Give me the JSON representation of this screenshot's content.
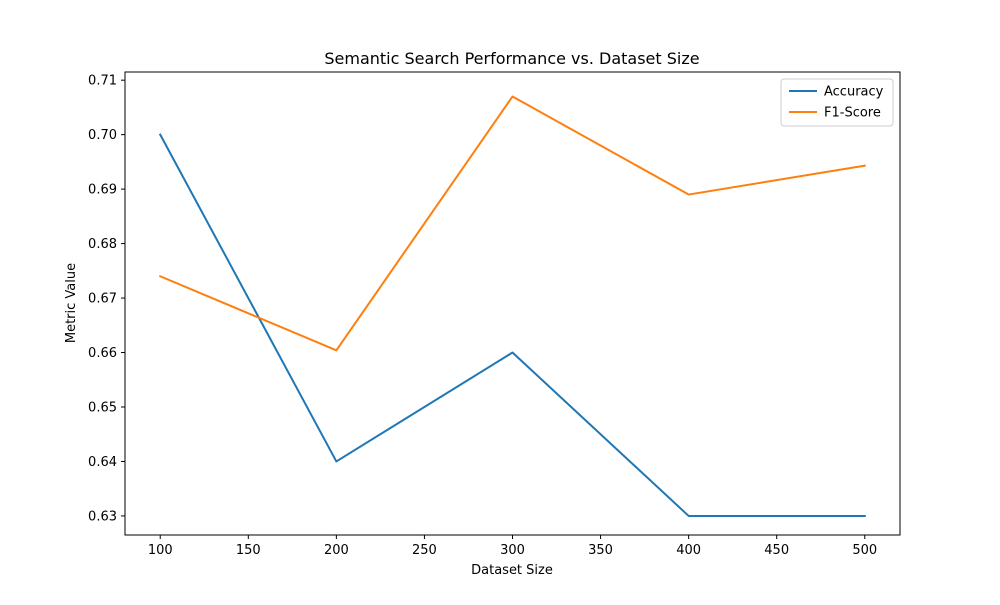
{
  "chart_data": {
    "type": "line",
    "title": "Semantic Search Performance vs. Dataset Size",
    "xlabel": "Dataset Size",
    "ylabel": "Metric Value",
    "x": [
      100,
      200,
      300,
      400,
      500
    ],
    "xlim": [
      80,
      520
    ],
    "ylim": [
      0.6265,
      0.7115
    ],
    "xticks": [
      100,
      150,
      200,
      250,
      300,
      350,
      400,
      450,
      500
    ],
    "yticks": [
      0.63,
      0.64,
      0.65,
      0.66,
      0.67,
      0.68,
      0.69,
      0.7,
      0.71
    ],
    "grid": false,
    "legend_position": "top-right",
    "series": [
      {
        "name": "Accuracy",
        "color": "#1f77b4",
        "values": [
          0.7,
          0.64,
          0.66,
          0.63,
          0.63
        ]
      },
      {
        "name": "F1-Score",
        "color": "#ff7f0e",
        "values": [
          0.674,
          0.6604,
          0.707,
          0.689,
          0.6943
        ]
      }
    ]
  }
}
